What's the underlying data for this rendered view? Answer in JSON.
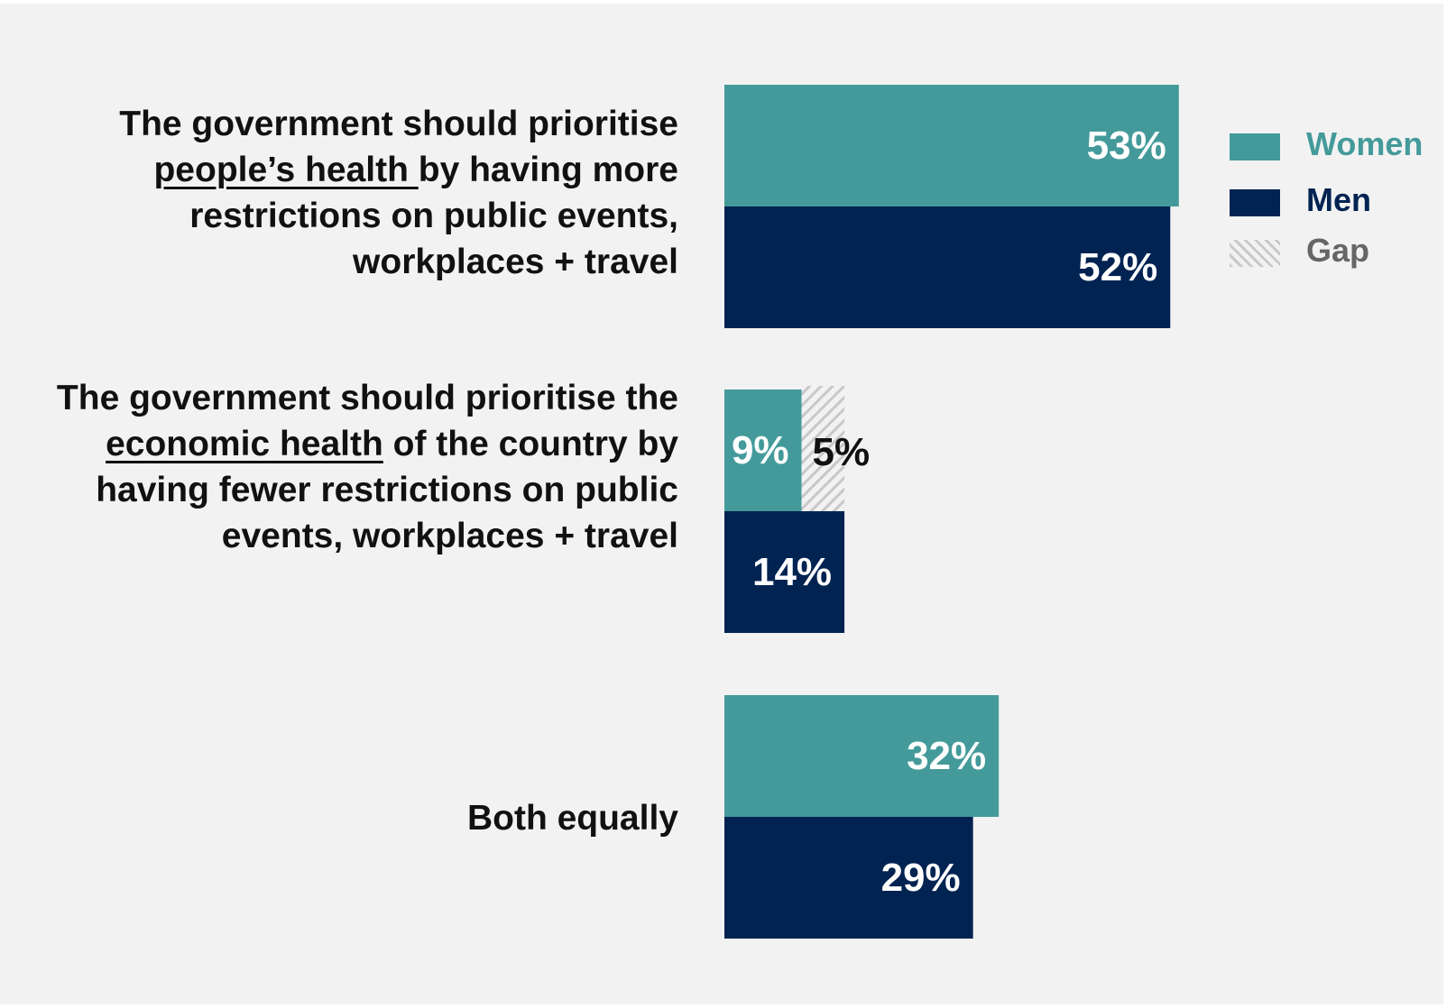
{
  "chart_data": {
    "type": "bar",
    "orientation": "horizontal",
    "categories": [
      {
        "pre": "The government should prioritise ",
        "underline": "people’s health ",
        "post": "by having more restrictions on public events, workplaces + travel"
      },
      {
        "pre": "The government should prioritise the ",
        "underline": "economic health",
        "post": " of the country by having fewer restrictions on public events, workplaces + travel"
      },
      {
        "pre": "Both equally",
        "underline": "",
        "post": ""
      }
    ],
    "series": [
      {
        "name": "Women",
        "color": "#449a9a",
        "values": [
          53,
          9,
          32
        ],
        "labels": [
          "53%",
          "9%",
          "32%"
        ]
      },
      {
        "name": "Men",
        "color": "#002352",
        "values": [
          52,
          14,
          29
        ],
        "labels": [
          "52%",
          "14%",
          "29%"
        ]
      }
    ],
    "gap": {
      "name": "Gap",
      "category_index": 1,
      "value": 5,
      "label": "5%"
    },
    "xlim": [
      0,
      100
    ],
    "legend": "right",
    "grid": false
  },
  "legend": {
    "women": "Women",
    "men": "Men",
    "gap": "Gap",
    "women_color": "#449a9a",
    "men_color": "#002352",
    "gap_color": "#666666"
  }
}
